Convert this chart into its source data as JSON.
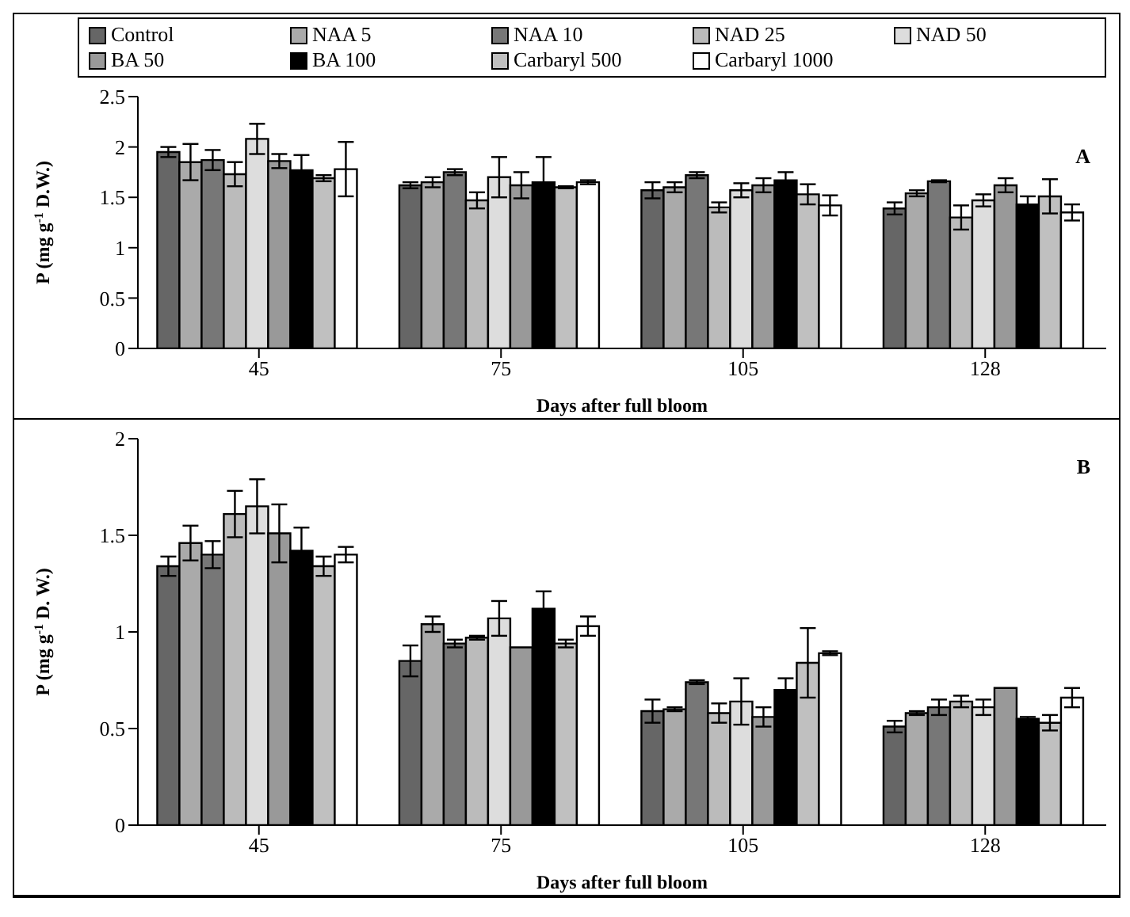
{
  "chart_data": [
    {
      "type": "bar",
      "ylabel": "P (mg g$^{-1}$ D.W.)",
      "xlabel": "Days after full bloom",
      "annotations": [
        "A"
      ],
      "categories": [
        "45",
        "75",
        "105",
        "128"
      ],
      "ylim": [
        0,
        2.5
      ],
      "yticks": [
        0,
        0.5,
        1,
        1.5,
        2,
        2.5
      ],
      "legend": "top",
      "series": [
        {
          "name": "Control",
          "color": "#666666",
          "values": [
            1.95,
            1.62,
            1.57,
            1.39
          ],
          "errors": [
            0.05,
            0.03,
            0.08,
            0.06
          ]
        },
        {
          "name": "NAA 5",
          "color": "#aaaaaa",
          "values": [
            1.85,
            1.65,
            1.6,
            1.54
          ],
          "errors": [
            0.18,
            0.05,
            0.05,
            0.03
          ]
        },
        {
          "name": "NAA 10",
          "color": "#777777",
          "values": [
            1.87,
            1.75,
            1.72,
            1.66
          ],
          "errors": [
            0.1,
            0.03,
            0.03,
            0.01
          ]
        },
        {
          "name": "NAD 25",
          "color": "#bbbbbb",
          "values": [
            1.73,
            1.47,
            1.4,
            1.3
          ],
          "errors": [
            0.12,
            0.08,
            0.05,
            0.12
          ]
        },
        {
          "name": "NAD 50",
          "color": "#dddddd",
          "values": [
            2.08,
            1.7,
            1.57,
            1.47
          ],
          "errors": [
            0.15,
            0.2,
            0.07,
            0.06
          ]
        },
        {
          "name": "BA 50",
          "color": "#999999",
          "values": [
            1.86,
            1.62,
            1.62,
            1.62
          ],
          "errors": [
            0.07,
            0.13,
            0.07,
            0.07
          ]
        },
        {
          "name": "BA 100",
          "color": "#000000",
          "values": [
            1.77,
            1.65,
            1.67,
            1.43
          ],
          "errors": [
            0.15,
            0.25,
            0.08,
            0.08
          ]
        },
        {
          "name": "Carbaryl 500",
          "color": "#c0c0c0",
          "values": [
            1.69,
            1.6,
            1.53,
            1.51
          ],
          "errors": [
            0.03,
            0.01,
            0.1,
            0.17
          ]
        },
        {
          "name": "Carbaryl 1000",
          "color": "#ffffff",
          "values": [
            1.78,
            1.65,
            1.42,
            1.35
          ],
          "errors": [
            0.27,
            0.02,
            0.1,
            0.08
          ]
        }
      ]
    },
    {
      "type": "bar",
      "ylabel": "P (mg g$^{-1}$ D. W.)",
      "xlabel": "Days after full bloom",
      "annotations": [
        "B"
      ],
      "categories": [
        "45",
        "75",
        "105",
        "128"
      ],
      "ylim": [
        0,
        2
      ],
      "yticks": [
        0,
        0.5,
        1,
        1.5,
        2
      ],
      "legend": false,
      "series": [
        {
          "color": "#666666",
          "values": [
            1.34,
            0.85,
            0.59,
            0.51
          ],
          "errors": [
            0.05,
            0.08,
            0.06,
            0.03
          ]
        },
        {
          "color": "#aaaaaa",
          "values": [
            1.46,
            1.04,
            0.6,
            0.58
          ],
          "errors": [
            0.09,
            0.04,
            0.01,
            0.01
          ]
        },
        {
          "color": "#777777",
          "values": [
            1.4,
            0.94,
            0.74,
            0.61
          ],
          "errors": [
            0.07,
            0.02,
            0.01,
            0.04
          ]
        },
        {
          "color": "#bbbbbb",
          "values": [
            1.61,
            0.97,
            0.58,
            0.64
          ],
          "errors": [
            0.12,
            0.01,
            0.05,
            0.03
          ]
        },
        {
          "color": "#dddddd",
          "values": [
            1.65,
            1.07,
            0.64,
            0.61
          ],
          "errors": [
            0.14,
            0.09,
            0.12,
            0.04
          ]
        },
        {
          "color": "#999999",
          "values": [
            1.51,
            0.92,
            0.56,
            0.71
          ],
          "errors": [
            0.15,
            null,
            0.05,
            null
          ]
        },
        {
          "color": "#000000",
          "values": [
            1.42,
            1.12,
            0.7,
            0.55
          ],
          "errors": [
            0.12,
            0.09,
            0.06,
            0.01
          ]
        },
        {
          "color": "#c0c0c0",
          "values": [
            1.34,
            0.94,
            0.84,
            0.53
          ],
          "errors": [
            0.05,
            0.02,
            0.18,
            0.04
          ]
        },
        {
          "color": "#ffffff",
          "values": [
            1.4,
            1.03,
            0.89,
            0.66
          ],
          "errors": [
            0.04,
            0.05,
            0.01,
            0.05
          ]
        }
      ]
    }
  ]
}
